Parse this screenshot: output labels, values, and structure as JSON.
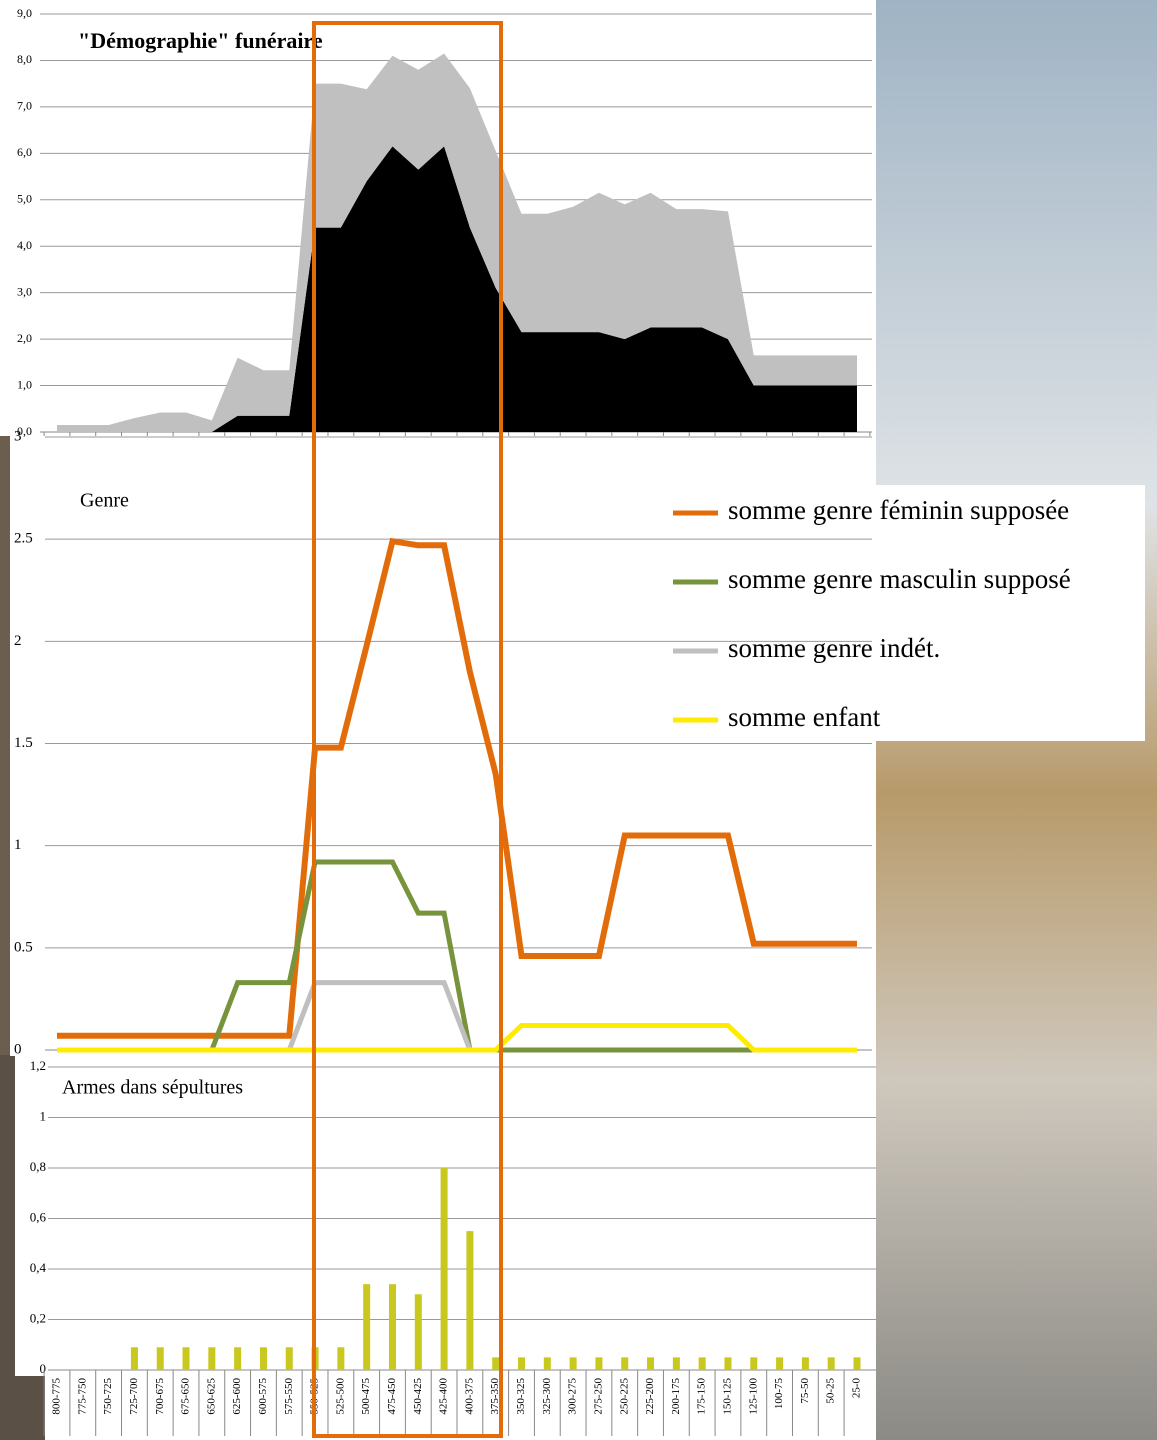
{
  "chart_data": [
    {
      "type": "area",
      "title": "\"Démographie\" funéraire",
      "ylim": [
        0,
        9
      ],
      "yticks": [
        {
          "value": 0,
          "label": "0,0"
        },
        {
          "value": 1,
          "label": "1,0"
        },
        {
          "value": 2,
          "label": "2,0"
        },
        {
          "value": 3,
          "label": "3,0"
        },
        {
          "value": 4,
          "label": "4,0"
        },
        {
          "value": 5,
          "label": "5,0"
        },
        {
          "value": 6,
          "label": "6,0"
        },
        {
          "value": 7,
          "label": "7,0"
        },
        {
          "value": 8,
          "label": "8,0"
        },
        {
          "value": 9,
          "label": "9,0"
        }
      ],
      "grid": true,
      "stacked": true,
      "series": [
        {
          "color": "#000000",
          "values": [
            0,
            0,
            0,
            0,
            0,
            0,
            0,
            0.35,
            0.35,
            0.35,
            4.4,
            4.4,
            5.4,
            6.15,
            5.65,
            6.15,
            4.4,
            3.1,
            2.15,
            2.15,
            2.15,
            2.15,
            2.0,
            2.25,
            2.25,
            2.25,
            2.0,
            1.0,
            1.0,
            1.0,
            1.0,
            1.0
          ]
        },
        {
          "color": "#c0c0c0",
          "values": [
            0.15,
            0.15,
            0.15,
            0.3,
            0.42,
            0.42,
            0.25,
            1.25,
            0.98,
            0.98,
            3.1,
            3.1,
            1.98,
            1.95,
            2.15,
            2.0,
            3.0,
            2.95,
            2.55,
            2.55,
            2.7,
            3.0,
            2.9,
            2.9,
            2.55,
            2.55,
            2.75,
            0.65,
            0.65,
            0.65,
            0.65,
            0.65
          ]
        }
      ]
    },
    {
      "type": "line",
      "title": "Genre",
      "ylim": [
        0,
        3
      ],
      "yticks": [
        0,
        0.5,
        1,
        1.5,
        2,
        2.5,
        3
      ],
      "grid": true,
      "legend": "right",
      "series": [
        {
          "name": "somme genre féminin supposée",
          "color": "#e36c0a",
          "values": [
            0.07,
            0.07,
            0.07,
            0.07,
            0.07,
            0.07,
            0.07,
            0.07,
            0.07,
            0.07,
            1.48,
            1.48,
            1.98,
            2.49,
            2.47,
            2.47,
            1.85,
            1.35,
            0.46,
            0.46,
            0.46,
            0.46,
            1.05,
            1.05,
            1.05,
            1.05,
            1.05,
            0.52,
            0.52,
            0.52,
            0.52,
            0.52
          ]
        },
        {
          "name": "somme genre masculin supposé",
          "color": "#77933c",
          "values": [
            null,
            null,
            null,
            null,
            null,
            null,
            0,
            0.33,
            0.33,
            0.33,
            0.92,
            0.92,
            0.92,
            0.92,
            0.67,
            0.67,
            0,
            0,
            0,
            0,
            0,
            0,
            0,
            0,
            0,
            0,
            0,
            0,
            0,
            0,
            0,
            0
          ]
        },
        {
          "name": "somme genre indét.",
          "color": "#bfbfbf",
          "values": [
            null,
            null,
            null,
            null,
            null,
            null,
            null,
            null,
            null,
            0,
            0.33,
            0.33,
            0.33,
            0.33,
            0.33,
            0.33,
            0,
            null,
            null,
            null,
            null,
            null,
            null,
            null,
            null,
            null,
            null,
            null,
            null,
            null,
            null,
            null
          ]
        },
        {
          "name": "somme enfant",
          "color": "#ffeb00",
          "values": [
            0,
            0,
            0,
            0,
            0,
            0,
            0,
            0,
            0,
            0,
            0,
            0,
            0,
            0,
            0,
            0,
            0,
            0,
            0.12,
            0.12,
            0.12,
            0.12,
            0.12,
            0.12,
            0.12,
            0.12,
            0.12,
            0,
            0,
            0,
            0,
            0
          ]
        }
      ]
    },
    {
      "type": "bar",
      "title": "Armes dans sépultures",
      "ylim": [
        0,
        1.2
      ],
      "yticks": [
        0,
        {
          "value": 0.2,
          "label": "0,2"
        },
        {
          "value": 0.4,
          "label": "0,4"
        },
        {
          "value": 0.6,
          "label": "0,6"
        },
        {
          "value": 0.8,
          "label": "0,8"
        },
        1,
        {
          "value": 1.2,
          "label": "1,2"
        }
      ],
      "grid": true,
      "color": "#c8c81e",
      "categories": [
        "800-775",
        "775-750",
        "750-725",
        "725-700",
        "700-675",
        "675-650",
        "650-625",
        "625-600",
        "600-575",
        "575-550",
        "550-525",
        "525-500",
        "500-475",
        "475-450",
        "450-425",
        "425-400",
        "400-375",
        "375-350",
        "350-325",
        "325-300",
        "300-275",
        "275-250",
        "250-225",
        "225-200",
        "200-175",
        "175-150",
        "150-125",
        "125-100",
        "100-75",
        "75-50",
        "50-25",
        "25-0"
      ],
      "values": [
        0,
        0,
        0,
        0.09,
        0.09,
        0.09,
        0.09,
        0.09,
        0.09,
        0.09,
        0.09,
        0.09,
        0.34,
        0.34,
        0.3,
        0.8,
        0.55,
        0.05,
        0.05,
        0.05,
        0.05,
        0.05,
        0.05,
        0.05,
        0.05,
        0.05,
        0.05,
        0.05,
        0.05,
        0.05,
        0.05,
        0.05
      ]
    }
  ]
}
